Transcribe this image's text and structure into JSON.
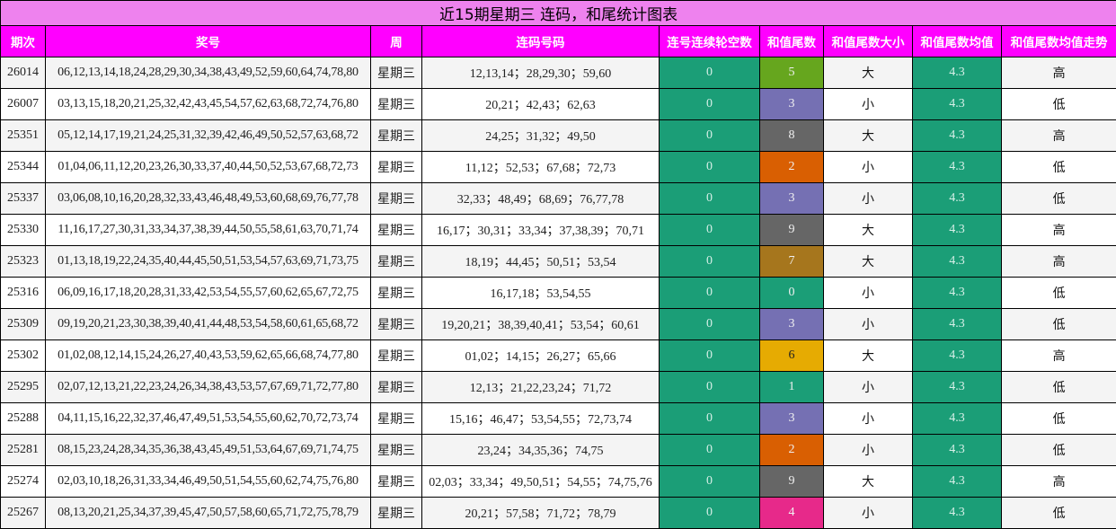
{
  "title": "近15期星期三 连码，和尾统计图表",
  "headers": [
    "期次",
    "奖号",
    "周",
    "连码号码",
    "连号连续轮空数",
    "和值尾数",
    "和值尾数大小",
    "和值尾数均值",
    "和值尾数均值走势"
  ],
  "colors": {
    "title_bg": "#ee82ee",
    "header_bg": "#ff00ff",
    "gap_bg": "#1b9e77",
    "avg_bg": "#1b9e77",
    "tail_colors": {
      "0": "#1b9e77",
      "1": "#1b9e77",
      "2": "#d95f02",
      "3": "#7570b3",
      "4": "#e7298a",
      "5": "#66a61e",
      "6": "#e6ab02",
      "7": "#a6761d",
      "8": "#666666",
      "9": "#666666"
    }
  },
  "rows": [
    {
      "period": "26014",
      "numbers": "06,12,13,14,18,24,28,29,30,34,38,43,49,52,59,60,64,74,78,80",
      "week": "星期三",
      "consec": "12,13,14；28,29,30；59,60",
      "gap": "0",
      "tail": "5",
      "tail_color": "#66a61e",
      "size": "大",
      "avg": "4.3",
      "trend": "高"
    },
    {
      "period": "26007",
      "numbers": "03,13,15,18,20,21,25,32,42,43,45,54,57,62,63,68,72,74,76,80",
      "week": "星期三",
      "consec": "20,21；42,43；62,63",
      "gap": "0",
      "tail": "3",
      "tail_color": "#7570b3",
      "size": "小",
      "avg": "4.3",
      "trend": "低"
    },
    {
      "period": "25351",
      "numbers": "05,12,14,17,19,21,24,25,31,32,39,42,46,49,50,52,57,63,68,72",
      "week": "星期三",
      "consec": "24,25；31,32；49,50",
      "gap": "0",
      "tail": "8",
      "tail_color": "#666666",
      "size": "大",
      "avg": "4.3",
      "trend": "高"
    },
    {
      "period": "25344",
      "numbers": "01,04,06,11,12,20,23,26,30,33,37,40,44,50,52,53,67,68,72,73",
      "week": "星期三",
      "consec": "11,12；52,53；67,68；72,73",
      "gap": "0",
      "tail": "2",
      "tail_color": "#d95f02",
      "size": "小",
      "avg": "4.3",
      "trend": "低"
    },
    {
      "period": "25337",
      "numbers": "03,06,08,10,16,20,28,32,33,43,46,48,49,53,60,68,69,76,77,78",
      "week": "星期三",
      "consec": "32,33；48,49；68,69；76,77,78",
      "gap": "0",
      "tail": "3",
      "tail_color": "#7570b3",
      "size": "小",
      "avg": "4.3",
      "trend": "低"
    },
    {
      "period": "25330",
      "numbers": "11,16,17,27,30,31,33,34,37,38,39,44,50,55,58,61,63,70,71,74",
      "week": "星期三",
      "consec": "16,17；30,31；33,34；37,38,39；70,71",
      "gap": "0",
      "tail": "9",
      "tail_color": "#666666",
      "size": "大",
      "avg": "4.3",
      "trend": "高"
    },
    {
      "period": "25323",
      "numbers": "01,13,18,19,22,24,35,40,44,45,50,51,53,54,57,63,69,71,73,75",
      "week": "星期三",
      "consec": "18,19；44,45；50,51；53,54",
      "gap": "0",
      "tail": "7",
      "tail_color": "#a6761d",
      "size": "大",
      "avg": "4.3",
      "trend": "高"
    },
    {
      "period": "25316",
      "numbers": "06,09,16,17,18,20,28,31,33,42,53,54,55,57,60,62,65,67,72,75",
      "week": "星期三",
      "consec": "16,17,18；53,54,55",
      "gap": "0",
      "tail": "0",
      "tail_color": "#1b9e77",
      "size": "小",
      "avg": "4.3",
      "trend": "低"
    },
    {
      "period": "25309",
      "numbers": "09,19,20,21,23,30,38,39,40,41,44,48,53,54,58,60,61,65,68,72",
      "week": "星期三",
      "consec": "19,20,21；38,39,40,41；53,54；60,61",
      "gap": "0",
      "tail": "3",
      "tail_color": "#7570b3",
      "size": "小",
      "avg": "4.3",
      "trend": "低"
    },
    {
      "period": "25302",
      "numbers": "01,02,08,12,14,15,24,26,27,40,43,53,59,62,65,66,68,74,77,80",
      "week": "星期三",
      "consec": "01,02；14,15；26,27；65,66",
      "gap": "0",
      "tail": "6",
      "tail_color": "#e6ab02",
      "size": "大",
      "avg": "4.3",
      "trend": "高"
    },
    {
      "period": "25295",
      "numbers": "02,07,12,13,21,22,23,24,26,34,38,43,53,57,67,69,71,72,77,80",
      "week": "星期三",
      "consec": "12,13；21,22,23,24；71,72",
      "gap": "0",
      "tail": "1",
      "tail_color": "#1b9e77",
      "size": "小",
      "avg": "4.3",
      "trend": "低"
    },
    {
      "period": "25288",
      "numbers": "04,11,15,16,22,32,37,46,47,49,51,53,54,55,60,62,70,72,73,74",
      "week": "星期三",
      "consec": "15,16；46,47；53,54,55；72,73,74",
      "gap": "0",
      "tail": "3",
      "tail_color": "#7570b3",
      "size": "小",
      "avg": "4.3",
      "trend": "低"
    },
    {
      "period": "25281",
      "numbers": "08,15,23,24,28,34,35,36,38,43,45,49,51,53,64,67,69,71,74,75",
      "week": "星期三",
      "consec": "23,24；34,35,36；74,75",
      "gap": "0",
      "tail": "2",
      "tail_color": "#d95f02",
      "size": "小",
      "avg": "4.3",
      "trend": "低"
    },
    {
      "period": "25274",
      "numbers": "02,03,10,18,26,31,33,34,46,49,50,51,54,55,60,62,74,75,76,80",
      "week": "星期三",
      "consec": "02,03；33,34；49,50,51；54,55；74,75,76",
      "gap": "0",
      "tail": "9",
      "tail_color": "#666666",
      "size": "大",
      "avg": "4.3",
      "trend": "高"
    },
    {
      "period": "25267",
      "numbers": "08,13,20,21,25,34,37,39,45,47,50,57,58,60,65,71,72,75,78,79",
      "week": "星期三",
      "consec": "20,21；57,58；71,72；78,79",
      "gap": "0",
      "tail": "4",
      "tail_color": "#e7298a",
      "size": "小",
      "avg": "4.3",
      "trend": "低"
    }
  ]
}
